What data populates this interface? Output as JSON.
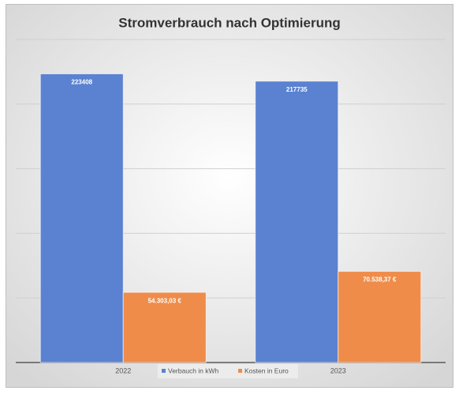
{
  "chart_data": {
    "type": "bar",
    "title": "Stromverbrauch nach Optimierung",
    "categories": [
      "2022",
      "2023"
    ],
    "series": [
      {
        "name": "Verbauch in kWh",
        "color": "#5b82d0",
        "values": [
          223408,
          217735
        ]
      },
      {
        "name": "Kosten in Euro",
        "color": "#ef8c4a",
        "values": [
          54303.03,
          70538.37
        ],
        "value_labels": [
          "54.303,03 €",
          "70.538,37 €"
        ]
      }
    ],
    "ylim": [
      0,
      250000
    ],
    "yticks": [
      0,
      50000,
      100000,
      150000,
      200000,
      250000
    ],
    "grid": true
  }
}
